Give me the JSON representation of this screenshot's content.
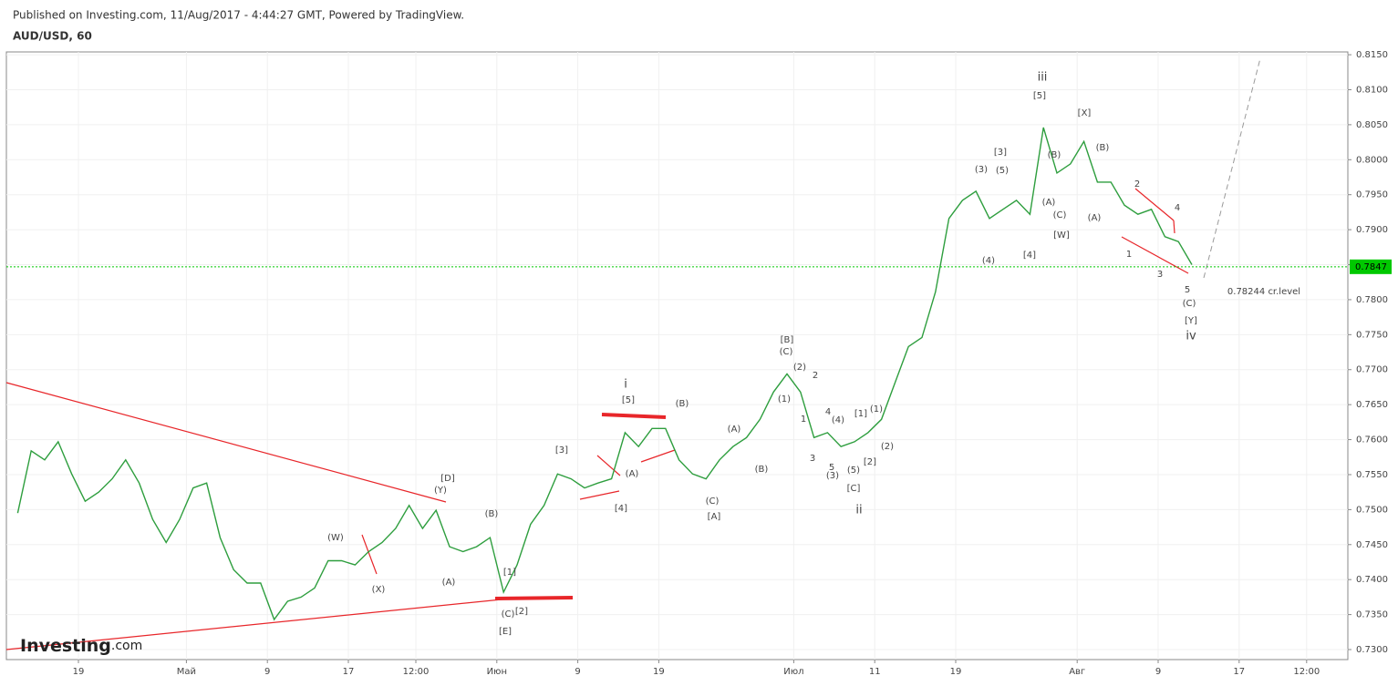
{
  "header": {
    "published": "Published on Investing.com, 11/Aug/2017 - 4:44:27 GMT, Powered by TradingView.",
    "logo": "Investing",
    "logo_suffix": ".com"
  },
  "chart_data": {
    "type": "line",
    "title": "AUD/USD, 60",
    "color": "#2e9e3e",
    "grid": true,
    "categories": [
      null,
      null,
      null,
      null,
      null,
      "19",
      null,
      null,
      null,
      null,
      null,
      null,
      null,
      "Май",
      null,
      null,
      null,
      null,
      null,
      "9",
      null,
      null,
      null,
      null,
      null,
      "17",
      null,
      null,
      null,
      null,
      "12:00",
      null,
      null,
      null,
      null,
      null,
      "Июн",
      null,
      null,
      null,
      null,
      null,
      "9",
      null,
      null,
      null,
      null,
      null,
      "19",
      null,
      null,
      null,
      null,
      null,
      null,
      null,
      null,
      null,
      "Июл",
      null,
      null,
      null,
      null,
      null,
      "11",
      null,
      null,
      null,
      null,
      null,
      "19",
      null,
      null,
      null,
      null,
      null,
      null,
      null,
      null,
      "Авг",
      null,
      null,
      null,
      null,
      null,
      "9",
      null,
      null,
      null,
      null,
      null,
      "17",
      null,
      null,
      null,
      null,
      "12:00",
      null,
      null
    ],
    "values": [
      0.7495,
      0.7584,
      0.7571,
      0.7597,
      0.7551,
      0.7512,
      0.7525,
      0.7544,
      0.7571,
      0.7538,
      0.7486,
      0.7453,
      0.7486,
      0.7531,
      0.7538,
      0.746,
      0.7414,
      0.7395,
      0.7395,
      0.7343,
      0.7369,
      0.7375,
      0.7388,
      0.7427,
      0.7427,
      0.7421,
      0.744,
      0.7453,
      0.7473,
      0.7506,
      0.7473,
      0.7499,
      0.7447,
      0.744,
      0.7447,
      0.746,
      0.7382,
      0.7421,
      0.7479,
      0.7506,
      0.7551,
      0.7544,
      0.7531,
      0.7538,
      0.7544,
      0.761,
      0.759,
      0.7616,
      0.7616,
      0.7571,
      0.7551,
      0.7544,
      0.7571,
      0.759,
      0.7603,
      0.7629,
      0.7668,
      0.7694,
      0.7668,
      0.7603,
      0.761,
      0.759,
      0.7597,
      0.761,
      0.7629,
      0.7681,
      0.7733,
      0.7746,
      0.7811,
      0.7916,
      0.7942,
      0.7955,
      0.7916,
      0.7929,
      0.7942,
      0.7922,
      0.8046,
      0.7981,
      0.7994,
      0.8026,
      0.7968,
      0.7968,
      0.7935,
      0.7922,
      0.7929,
      0.789,
      0.7883,
      0.785,
      null,
      null,
      null,
      null,
      null,
      null,
      null,
      null,
      null,
      null,
      null
    ],
    "ylim": [
      0.72857,
      0.8154
    ],
    "yticks": [
      {
        "value": 0.73,
        "label": "0.7300"
      },
      {
        "value": 0.735,
        "label": "0.7350"
      },
      {
        "value": 0.74,
        "label": "0.7400"
      },
      {
        "value": 0.745,
        "label": "0.7450"
      },
      {
        "value": 0.75,
        "label": "0.7500"
      },
      {
        "value": 0.755,
        "label": "0.7550"
      },
      {
        "value": 0.76,
        "label": "0.7600"
      },
      {
        "value": 0.765,
        "label": "0.7650"
      },
      {
        "value": 0.77,
        "label": "0.7700"
      },
      {
        "value": 0.775,
        "label": "0.7750"
      },
      {
        "value": 0.78,
        "label": "0.7800"
      },
      {
        "value": 0.785,
        "label": "0.7850"
      },
      {
        "value": 0.79,
        "label": "0.7900"
      },
      {
        "value": 0.795,
        "label": "0.7950"
      },
      {
        "value": 0.8,
        "label": "0.8000"
      },
      {
        "value": 0.805,
        "label": "0.8050"
      },
      {
        "value": 0.81,
        "label": "0.8100"
      },
      {
        "value": 0.815,
        "label": "0.8150"
      }
    ],
    "last_price": 0.7847,
    "last_price_color": "#00c800",
    "annotations": [
      "iii",
      "[5]",
      "[X]",
      "(B)",
      "(B)",
      "[3]",
      "(3)",
      "(5)",
      "(A)",
      "(C)",
      "[W]",
      "[4]",
      "(4)",
      "(A)",
      "2",
      "4",
      "1",
      "3",
      "5",
      "(C)",
      "[Y]",
      "iv",
      "0.78244 cr.level",
      "[B]",
      "(C)",
      "(2)",
      "2",
      "(1)",
      "1",
      "4",
      "(4)",
      "[1]",
      "(1)",
      "3",
      "5",
      "(3)",
      "(5)",
      "[2]",
      "(2)",
      "[C]",
      "ii",
      "i",
      "[5]",
      "(B)",
      "(A)",
      "(B)",
      "(A)",
      "[3]",
      "[4]",
      "(C)",
      "[A]",
      "[D]",
      "(Y)",
      "(B)",
      "(W)",
      "(X)",
      "(A)",
      "[1]",
      "(C)",
      "[2]",
      "[E]"
    ]
  }
}
